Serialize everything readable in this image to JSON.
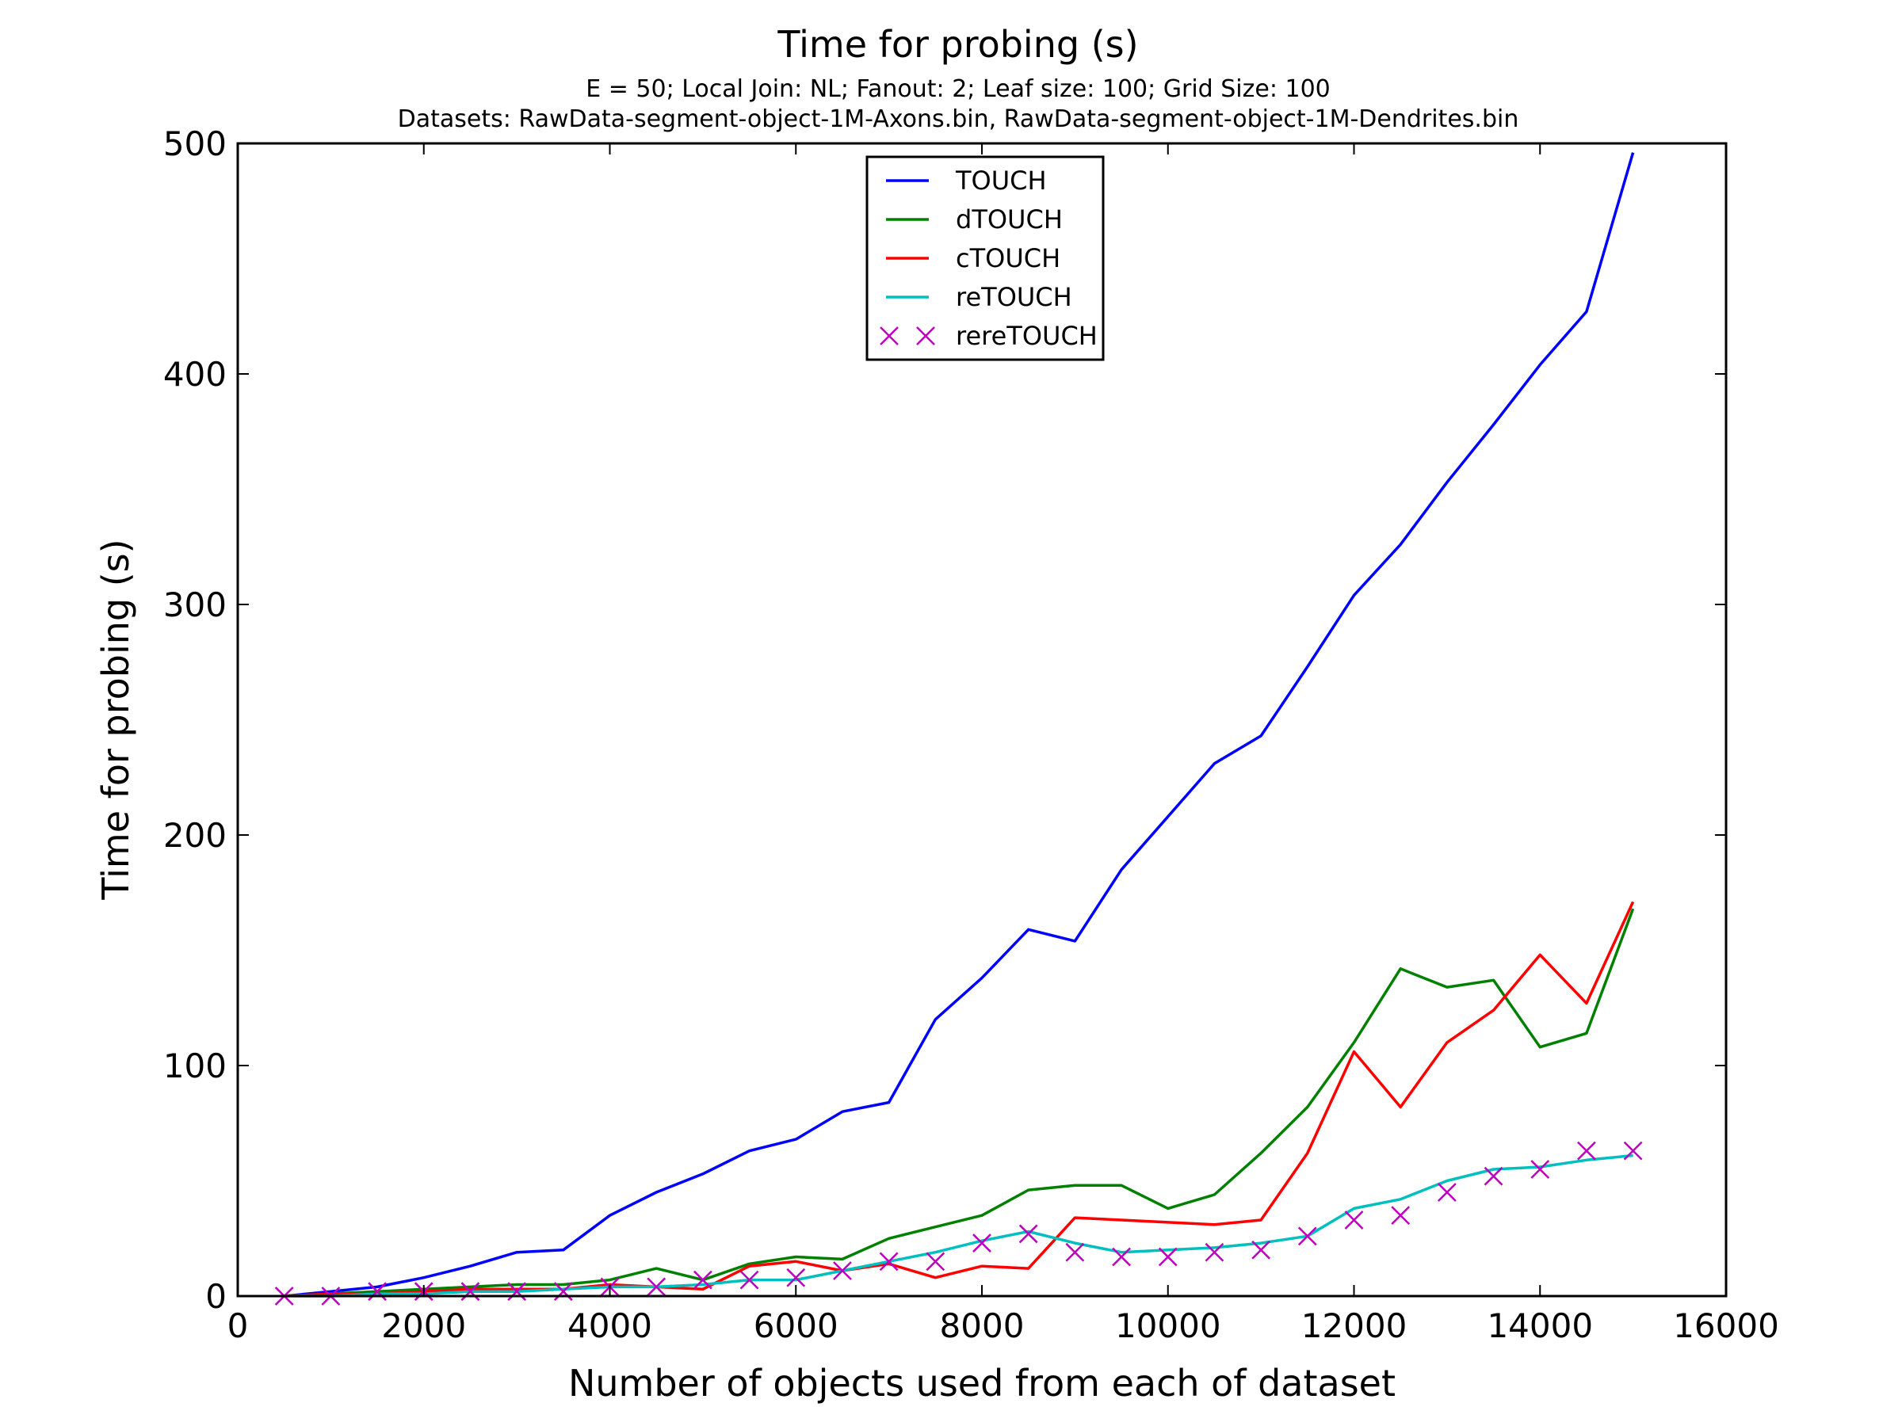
{
  "chart_data": {
    "type": "line",
    "title": "Time for probing (s)",
    "subtitle_lines": [
      "E = 50; Local Join: NL; Fanout: 2; Leaf size: 100; Grid Size: 100",
      "Datasets: RawData-segment-object-1M-Axons.bin, RawData-segment-object-1M-Dendrites.bin"
    ],
    "xlabel": "Number of objects used from each of dataset",
    "ylabel": "Time for probing (s)",
    "xlim": [
      0,
      16000
    ],
    "ylim": [
      0,
      500
    ],
    "xticks": [
      0,
      2000,
      4000,
      6000,
      8000,
      10000,
      12000,
      14000,
      16000
    ],
    "yticks": [
      0,
      100,
      200,
      300,
      400,
      500
    ],
    "grid": false,
    "legend_position": "upper-center",
    "x": [
      500,
      1000,
      1500,
      2000,
      2500,
      3000,
      3500,
      4000,
      4500,
      5000,
      5500,
      6000,
      6500,
      7000,
      7500,
      8000,
      8500,
      9000,
      9500,
      10000,
      10500,
      11000,
      11500,
      12000,
      12500,
      13000,
      13500,
      14000,
      14500,
      15000
    ],
    "series": [
      {
        "name": "TOUCH",
        "color": "#0000ff",
        "style": "line",
        "values": [
          0,
          2,
          4,
          8,
          13,
          19,
          20,
          35,
          45,
          53,
          63,
          68,
          80,
          84,
          120,
          138,
          159,
          154,
          185,
          208,
          231,
          243,
          273,
          304,
          326,
          353,
          378,
          404,
          427,
          496
        ]
      },
      {
        "name": "dTOUCH",
        "color": "#008000",
        "style": "line",
        "values": [
          0,
          1,
          2,
          3,
          4,
          5,
          5,
          7,
          12,
          7,
          14,
          17,
          16,
          25,
          30,
          35,
          46,
          48,
          48,
          38,
          44,
          62,
          82,
          110,
          142,
          134,
          137,
          108,
          114,
          168
        ]
      },
      {
        "name": "cTOUCH",
        "color": "#ff0000",
        "style": "line",
        "values": [
          0,
          1,
          1,
          2,
          3,
          3,
          3,
          5,
          4,
          3,
          13,
          15,
          11,
          14,
          8,
          13,
          12,
          34,
          33,
          32,
          31,
          33,
          62,
          106,
          82,
          110,
          124,
          148,
          127,
          171
        ]
      },
      {
        "name": "reTOUCH",
        "color": "#00bfbf",
        "style": "line",
        "values": [
          0,
          0,
          1,
          1,
          2,
          2,
          3,
          4,
          4,
          5,
          7,
          7,
          11,
          15,
          19,
          24,
          28,
          23,
          19,
          20,
          21,
          23,
          26,
          38,
          42,
          50,
          55,
          56,
          59,
          61
        ]
      },
      {
        "name": "rereTOUCH",
        "color": "#bf00bf",
        "style": "x-markers",
        "values": [
          0,
          0,
          2,
          2,
          2,
          2,
          2,
          4,
          4,
          7,
          7,
          8,
          11,
          15,
          15,
          23,
          27,
          19,
          17,
          17,
          19,
          20,
          26,
          33,
          35,
          45,
          52,
          55,
          63,
          63
        ]
      }
    ]
  }
}
